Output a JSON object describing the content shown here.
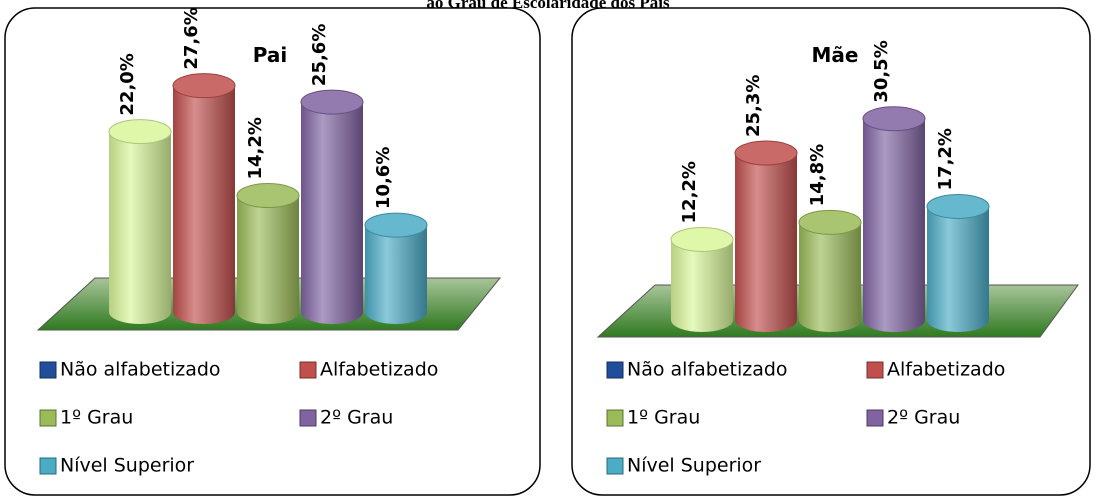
{
  "header": {
    "title": "ao Grau de Escolaridade dos Pais"
  },
  "chart_data": [
    {
      "type": "bar",
      "title": "Pai",
      "categories": [
        "Não alfabetizado",
        "Alfabetizado",
        "1º Grau",
        "2º Grau",
        "Nível Superior"
      ],
      "values": [
        22.0,
        27.6,
        14.2,
        25.6,
        10.6
      ],
      "value_labels": [
        "22,0%",
        "27,6%",
        "14,2%",
        "25,6%",
        "10,6%"
      ],
      "colors": [
        "#d8f59a",
        "#c0504d",
        "#9bbb59",
        "#8064a2",
        "#4bacc6"
      ],
      "legend_colors": [
        "#1f4e9a",
        "#c0504d",
        "#9bbb59",
        "#8064a2",
        "#4bacc6"
      ]
    },
    {
      "type": "bar",
      "title": "Mãe",
      "categories": [
        "Não alfabetizado",
        "Alfabetizado",
        "1º Grau",
        "2º Grau",
        "Nível Superior"
      ],
      "values": [
        12.2,
        25.3,
        14.8,
        30.5,
        17.2
      ],
      "value_labels": [
        "12,2%",
        "25,3%",
        "14,8%",
        "30,5%",
        "17,2%"
      ],
      "colors": [
        "#d8f59a",
        "#c0504d",
        "#9bbb59",
        "#8064a2",
        "#4bacc6"
      ],
      "legend_colors": [
        "#1f4e9a",
        "#c0504d",
        "#9bbb59",
        "#8064a2",
        "#4bacc6"
      ]
    }
  ]
}
